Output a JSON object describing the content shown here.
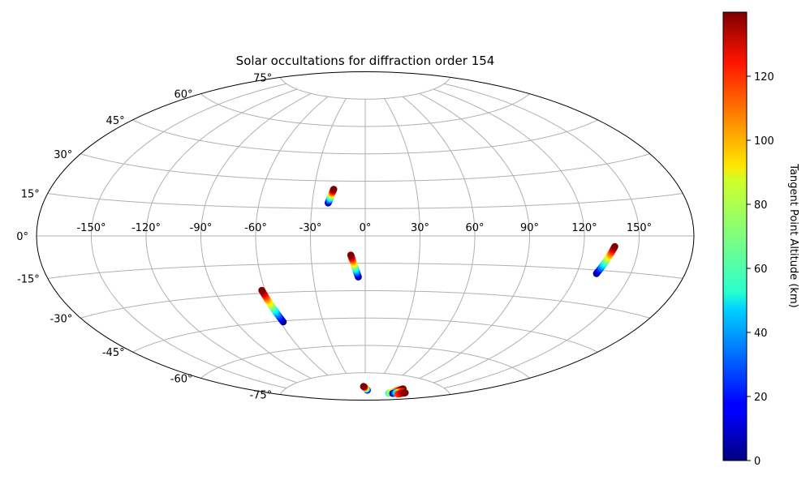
{
  "chart_data": {
    "type": "scatter",
    "projection": "aitoff",
    "title": "Solar occultations for diffraction order 154",
    "colorbar": {
      "label": "Tangent Point Altitude (km)",
      "min": 0,
      "max": 140,
      "ticks": [
        0,
        20,
        40,
        60,
        80,
        100,
        120
      ],
      "colormap": "jet"
    },
    "longitude_ticks": [
      "-150°",
      "-120°",
      "-90°",
      "-60°",
      "-30°",
      "0°",
      "30°",
      "60°",
      "90°",
      "120°",
      "150°"
    ],
    "latitude_ticks": [
      "-75°",
      "-60°",
      "-45°",
      "-30°",
      "-15°",
      "0°",
      "15°",
      "30°",
      "45°",
      "60°",
      "75°"
    ],
    "grid": true,
    "tracks": [
      {
        "lon_start": -21,
        "lat_start": 18,
        "lon_end": -18.5,
        "lat_end": 25.5,
        "alt_start": 0,
        "alt_end": 140
      },
      {
        "lon_start": -4,
        "lat_start": -22.5,
        "lon_end": -8,
        "lat_end": -10.5,
        "alt_start": 0,
        "alt_end": 140
      },
      {
        "lon_start": 131,
        "lat_start": -16.5,
        "lon_end": 137,
        "lat_end": -4.5,
        "alt_start": 0,
        "alt_end": 140
      },
      {
        "lon_start": -58,
        "lat_start": -45.5,
        "lon_end": -62,
        "lat_end": -28.5,
        "alt_start": 0,
        "alt_end": 140
      },
      {
        "lon_start": 8,
        "lat_start": -84.5,
        "lon_end": -5,
        "lat_end": -82.5,
        "alt_start": 0,
        "alt_end": 140
      },
      {
        "lon_start": 100,
        "lat_start": -84.5,
        "lon_end": 103,
        "lat_end": -81,
        "alt_start": 60,
        "alt_end": 140
      },
      {
        "lon_start": 112,
        "lat_start": -84,
        "lon_end": 118,
        "lat_end": -82,
        "alt_start": 0,
        "alt_end": 120
      },
      {
        "lon_start": 127,
        "lat_start": -83.5,
        "lon_end": 130,
        "lat_end": -82,
        "alt_start": 110,
        "alt_end": 140
      }
    ]
  }
}
